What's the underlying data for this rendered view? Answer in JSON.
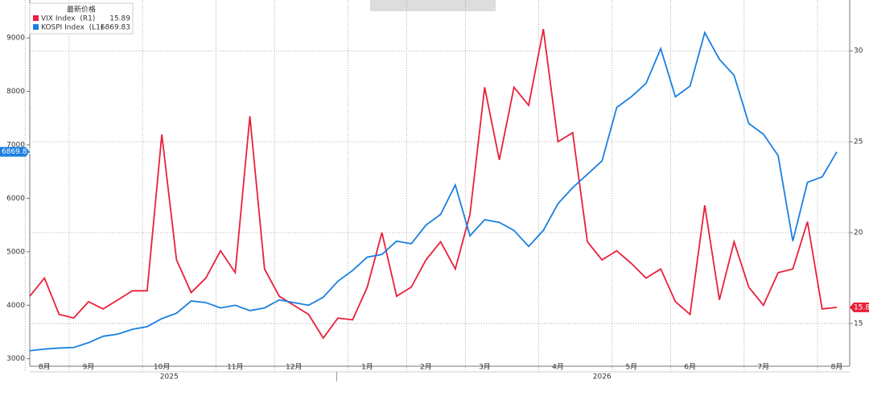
{
  "chart_data": {
    "type": "line",
    "legend_title": "最新价格",
    "categories": [
      null,
      "8月",
      null,
      null,
      "9月",
      null,
      null,
      null,
      null,
      "10月",
      null,
      null,
      null,
      null,
      "11月",
      null,
      null,
      null,
      "12月",
      null,
      null,
      null,
      null,
      "1月",
      null,
      null,
      null,
      "2月",
      null,
      null,
      null,
      "3月",
      null,
      null,
      null,
      null,
      "4月",
      null,
      null,
      null,
      null,
      "5月",
      null,
      null,
      null,
      "6月",
      null,
      null,
      null,
      null,
      "7月",
      null,
      null,
      null,
      null,
      "8月"
    ],
    "years": [
      "2025",
      "2026"
    ],
    "series": [
      {
        "name": "VIX Index  (R1)",
        "latest": 15.89,
        "color": "#e8203a",
        "axis": "y2",
        "values": [
          16.5,
          17.5,
          15.5,
          15.3,
          16.2,
          15.8,
          16.3,
          16.8,
          16.8,
          25.4,
          18.5,
          16.7,
          17.5,
          19.0,
          17.8,
          26.4,
          18.0,
          16.5,
          16.0,
          15.5,
          14.2,
          15.3,
          15.2,
          17.0,
          20.0,
          16.5,
          17.0,
          18.5,
          19.5,
          18.0,
          21.0,
          28.0,
          24.0,
          28.0,
          27.0,
          31.2,
          25.0,
          25.5,
          19.5,
          18.5,
          19.0,
          18.3,
          17.5,
          18.0,
          16.2,
          15.5,
          21.5,
          16.3,
          19.5,
          17.0,
          16.0,
          17.8,
          18.0,
          20.6,
          15.8,
          15.89
        ]
      },
      {
        "name": "KOSPI Index  (L1)",
        "latest": 6869.83,
        "color": "#1a7fe0",
        "axis": "y",
        "values": [
          3150,
          3180,
          3200,
          3210,
          3300,
          3420,
          3460,
          3550,
          3600,
          3750,
          3850,
          4080,
          4050,
          3950,
          4000,
          3900,
          3950,
          4100,
          4050,
          4000,
          4150,
          4450,
          4650,
          4900,
          4950,
          5200,
          5150,
          5500,
          5700,
          6250,
          5300,
          5600,
          5550,
          5400,
          5100,
          5400,
          5900,
          6200,
          6450,
          6700,
          7700,
          7900,
          8150,
          8800,
          7900,
          8100,
          9100,
          8600,
          8300,
          7400,
          7200,
          6800,
          5200,
          6300,
          6400,
          6869.83
        ]
      }
    ],
    "ylim": [
      2860,
      9710
    ],
    "yticks": [
      3000,
      4000,
      5000,
      6000,
      7000,
      8000,
      9000
    ],
    "y2lim": [
      12.65,
      32.8
    ],
    "y2ticks": [
      15,
      20,
      25,
      30
    ],
    "grid": true
  }
}
